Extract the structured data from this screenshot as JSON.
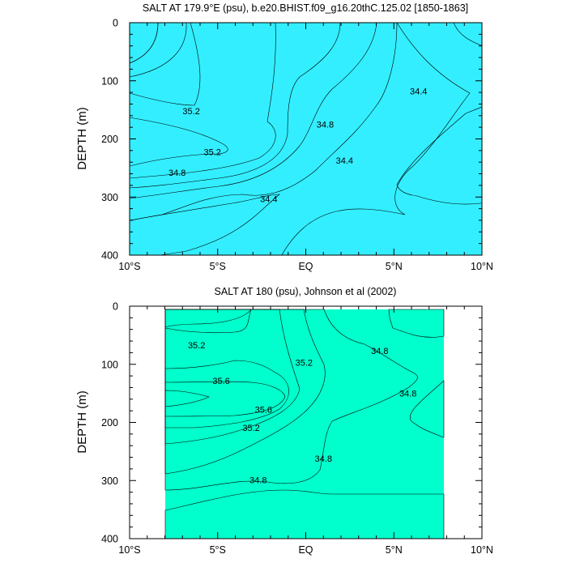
{
  "chart_data": [
    {
      "type": "contour",
      "title": "SALT AT 179.9°E (psu), b.e20.BHIST.f09_g16.20thC.125.02 [1850-1863]",
      "xlabel": "",
      "ylabel": "DEPTH (m)",
      "xlim": [
        -10,
        10
      ],
      "ylim": [
        400,
        0
      ],
      "x_ticks": [
        {
          "value": -10,
          "label": "10°S"
        },
        {
          "value": -5,
          "label": "5°S"
        },
        {
          "value": 0,
          "label": "EQ"
        },
        {
          "value": 5,
          "label": "5°N"
        },
        {
          "value": 10,
          "label": "10°N"
        }
      ],
      "y_ticks": [
        {
          "value": 0,
          "label": "0"
        },
        {
          "value": 100,
          "label": "100"
        },
        {
          "value": 200,
          "label": "200"
        },
        {
          "value": 300,
          "label": "300"
        },
        {
          "value": 400,
          "label": "400"
        }
      ],
      "levels": [
        34.2,
        34.4,
        34.6,
        34.8,
        35.0,
        35.2,
        35.4,
        35.6,
        35.8
      ],
      "level_colors": {
        "34.2": "#00aaff",
        "34.4": "#00ccff",
        "34.6": "#33eeff",
        "34.8": "#00ffcc",
        "35.0": "#00ff99",
        "35.2": "#33ee55",
        "35.4": "#00dd00",
        "35.6": "#99ff00",
        "35.8": "#ffff33",
        "36.0": "#ffcc33"
      },
      "contour_labels": [
        {
          "text": "35.2",
          "lat": -6.5,
          "depth": 152
        },
        {
          "text": "35.2",
          "lat": -5.3,
          "depth": 222
        },
        {
          "text": "34.8",
          "lat": -7.3,
          "depth": 258
        },
        {
          "text": "34.4",
          "lat": -2.1,
          "depth": 303
        },
        {
          "text": "34.8",
          "lat": 1.1,
          "depth": 175
        },
        {
          "text": "34.4",
          "lat": 2.2,
          "depth": 237
        },
        {
          "text": "34.4",
          "lat": 6.4,
          "depth": 118
        }
      ]
    },
    {
      "type": "contour",
      "title": "SALT AT 180 (psu), Johnson et al (2002)",
      "xlabel": "",
      "ylabel": "DEPTH (m)",
      "xlim": [
        -10,
        10
      ],
      "ylim": [
        400,
        0
      ],
      "data_lat_range": [
        -8,
        8
      ],
      "x_ticks": [
        {
          "value": -10,
          "label": "10°S"
        },
        {
          "value": -5,
          "label": "5°S"
        },
        {
          "value": 0,
          "label": "EQ"
        },
        {
          "value": 5,
          "label": "5°N"
        },
        {
          "value": 10,
          "label": "10°N"
        }
      ],
      "y_ticks": [
        {
          "value": 0,
          "label": "0"
        },
        {
          "value": 100,
          "label": "100"
        },
        {
          "value": 200,
          "label": "200"
        },
        {
          "value": 300,
          "label": "300"
        },
        {
          "value": 400,
          "label": "400"
        }
      ],
      "levels": [
        34.6,
        34.8,
        35.0,
        35.2,
        35.4,
        35.6,
        35.8,
        36.0
      ],
      "level_colors": {
        "34.6": "#33eeff",
        "34.8": "#00ffcc",
        "35.0": "#00ff99",
        "35.2": "#33ee55",
        "35.4": "#00dd00",
        "35.6": "#99ff00",
        "35.8": "#ffff33",
        "36.0": "#ffcc33"
      },
      "contour_labels": [
        {
          "text": "35.2",
          "lat": -6.2,
          "depth": 67
        },
        {
          "text": "35.6",
          "lat": -4.8,
          "depth": 128
        },
        {
          "text": "35.6",
          "lat": -2.4,
          "depth": 178
        },
        {
          "text": "35.2",
          "lat": -3.1,
          "depth": 209
        },
        {
          "text": "35.2",
          "lat": -0.1,
          "depth": 97
        },
        {
          "text": "34.8",
          "lat": 4.2,
          "depth": 77
        },
        {
          "text": "34.8",
          "lat": 5.8,
          "depth": 150
        },
        {
          "text": "34.8",
          "lat": 1.0,
          "depth": 262
        },
        {
          "text": "34.8",
          "lat": -2.7,
          "depth": 299
        }
      ]
    }
  ]
}
